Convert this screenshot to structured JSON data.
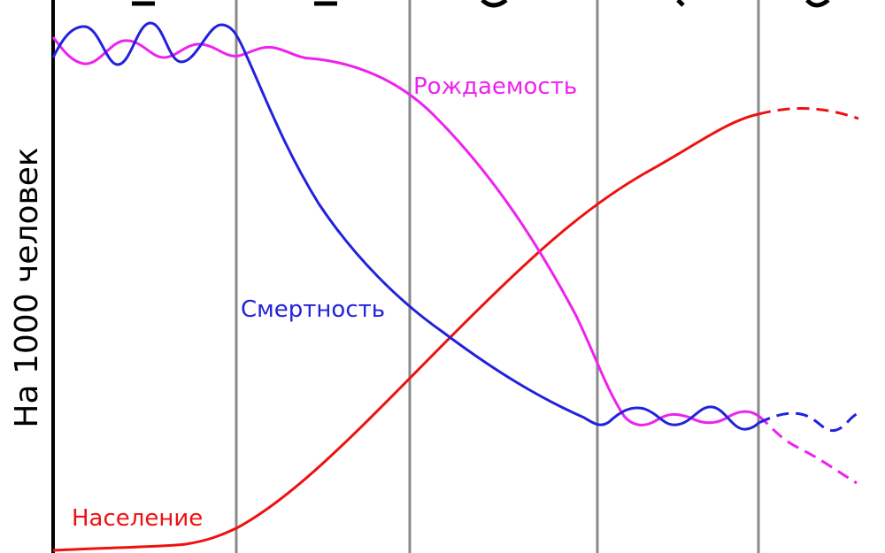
{
  "diagram": {
    "y_axis_label": "На 1000 человек",
    "series": [
      {
        "name": "Рождаемость",
        "color": "#ee22ee"
      },
      {
        "name": "Смертность",
        "color": "#2222dd"
      },
      {
        "name": "Население",
        "color": "#ee1111"
      }
    ],
    "stage_divider_color": "#8a8a8a",
    "axis_color": "#000000",
    "projection_style": "dashed"
  }
}
